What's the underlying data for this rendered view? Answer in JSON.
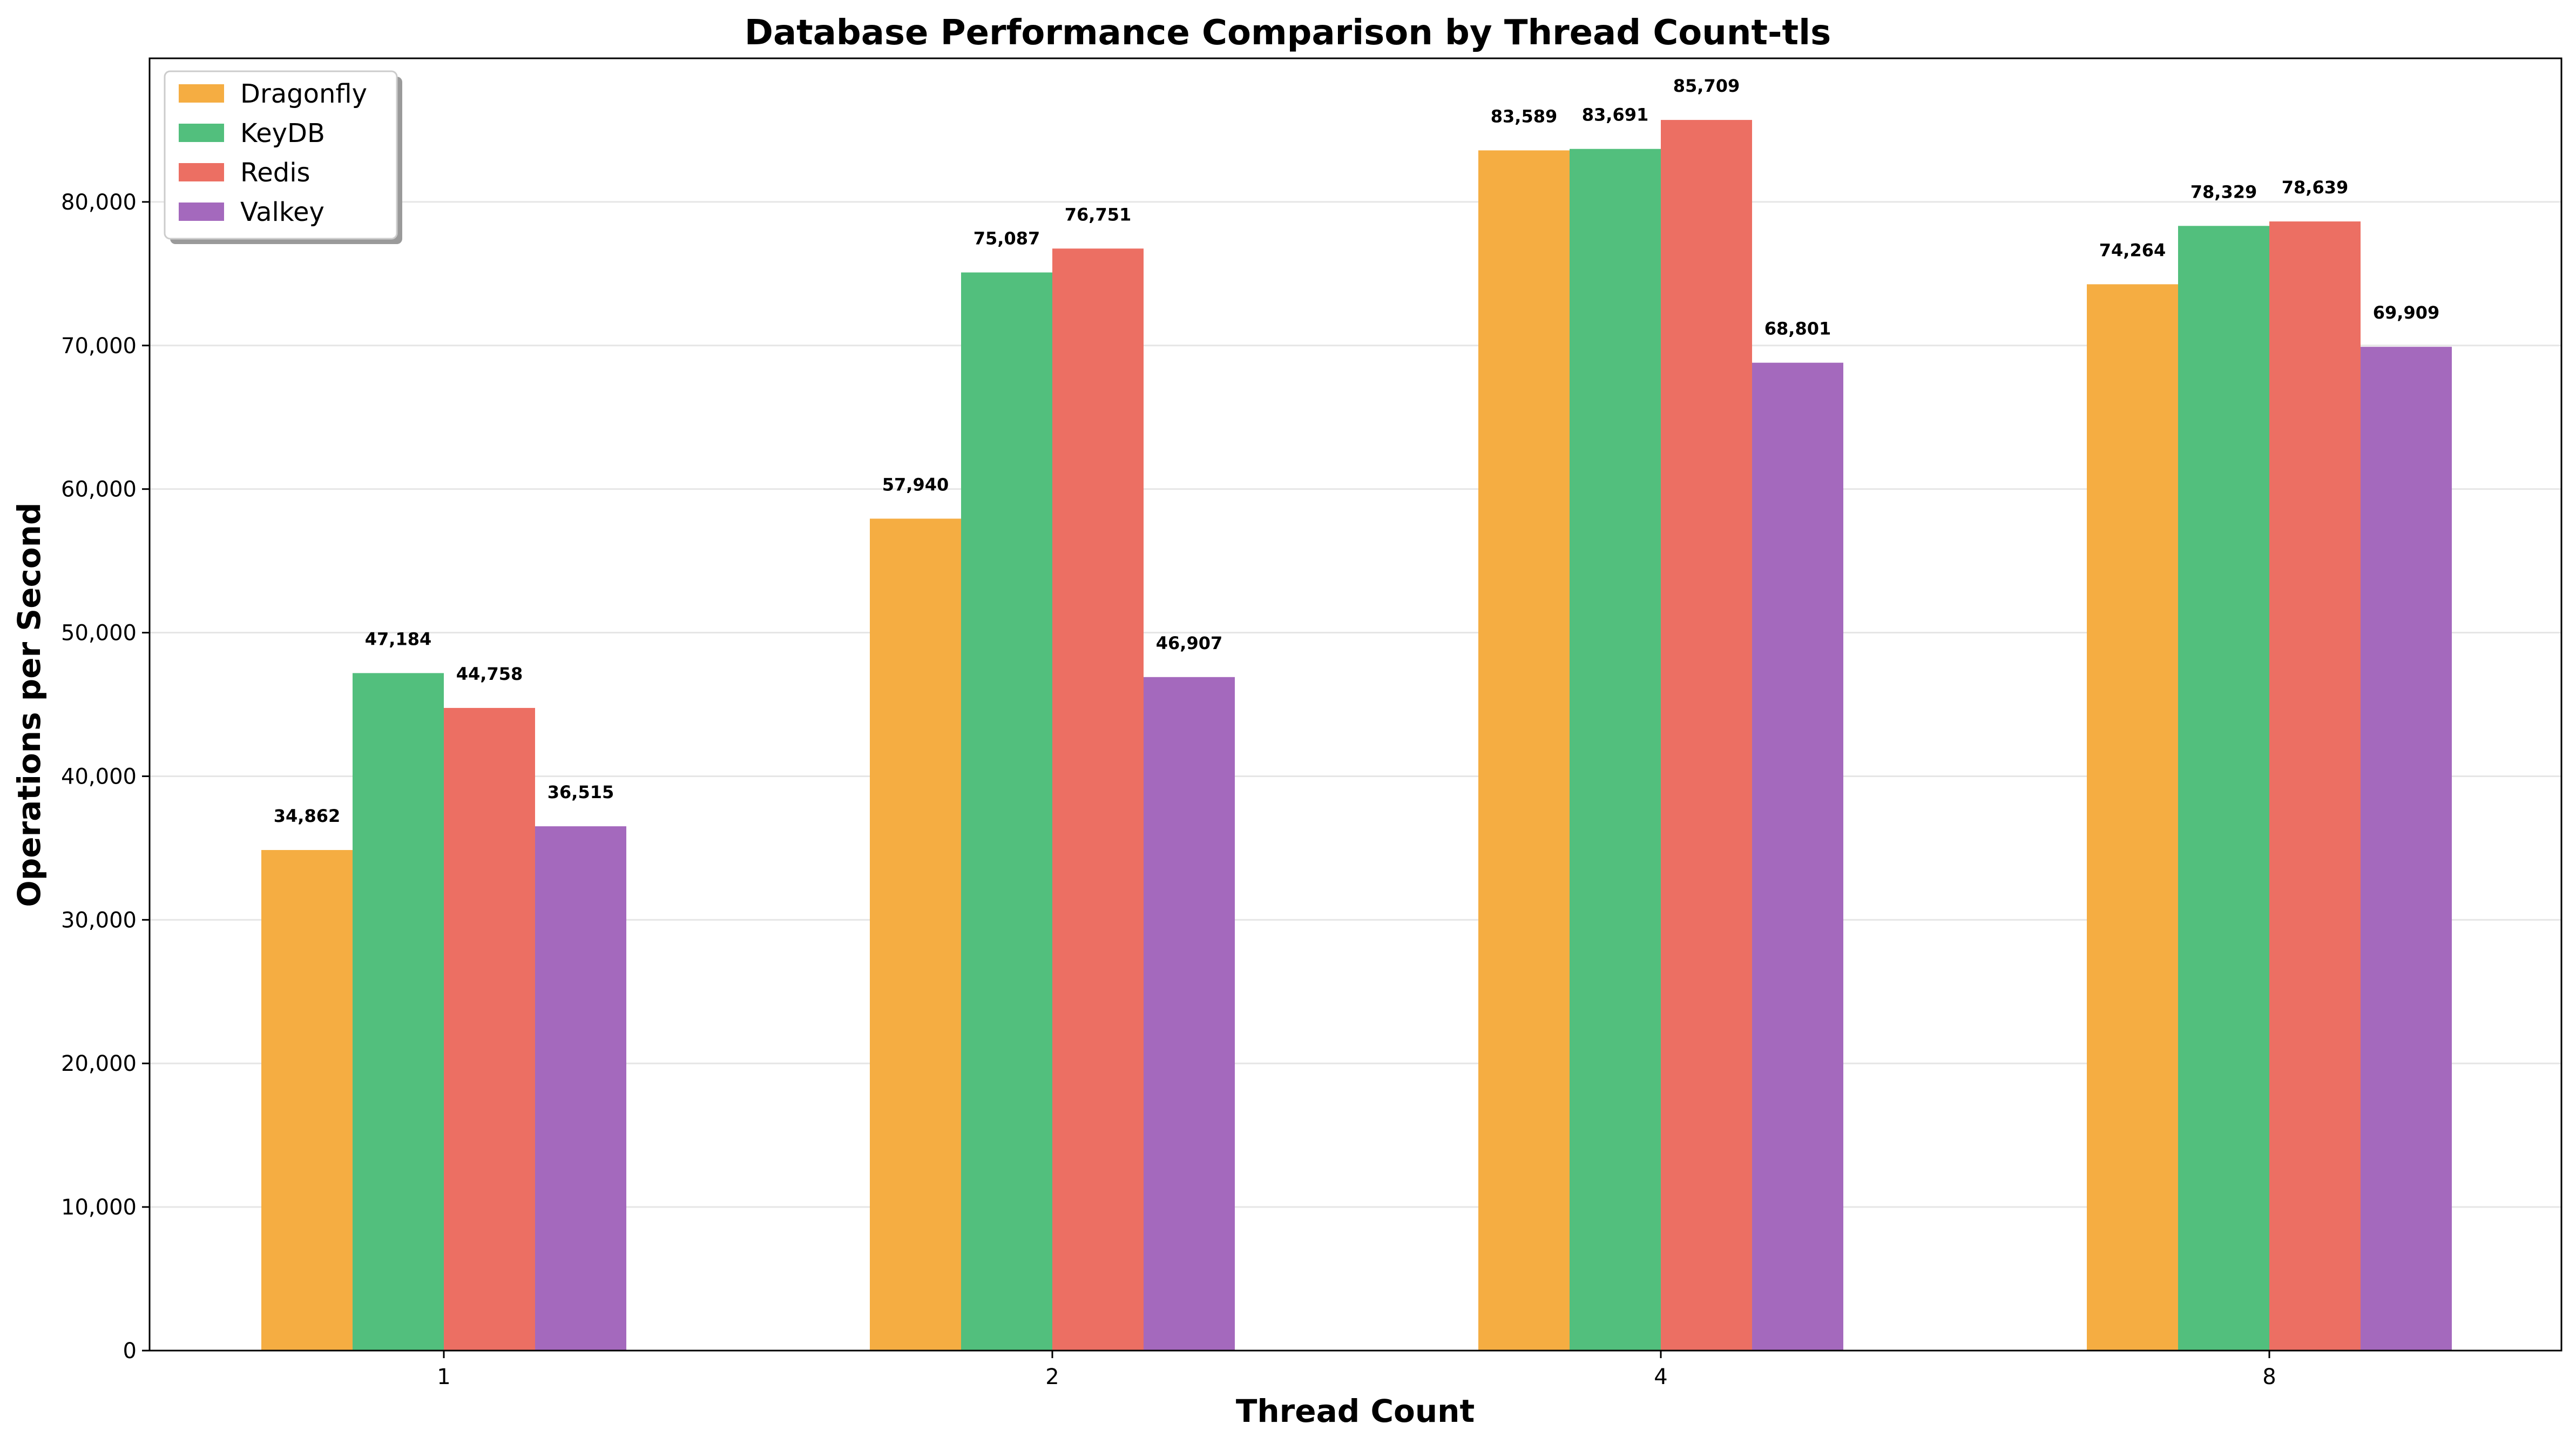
{
  "chart_data": {
    "type": "bar",
    "title": "Database Performance Comparison by Thread Count-tls",
    "xlabel": "Thread Count",
    "ylabel": "Operations per Second",
    "categories": [
      "1",
      "2",
      "4",
      "8"
    ],
    "ylim": [
      0,
      90000
    ],
    "yticks": [
      0,
      10000,
      20000,
      30000,
      40000,
      50000,
      60000,
      70000,
      80000
    ],
    "ytick_labels": [
      "0",
      "10,000",
      "20,000",
      "30,000",
      "40,000",
      "50,000",
      "60,000",
      "70,000",
      "80,000"
    ],
    "grid": "y",
    "legend_position": "top-left",
    "series": [
      {
        "name": "Dragonfly",
        "color": "#f5ad42",
        "values": [
          34862,
          57940,
          83589,
          74264
        ],
        "labels": [
          "34,862",
          "57,940",
          "83,589",
          "74,264"
        ]
      },
      {
        "name": "KeyDB",
        "color": "#52bf7d",
        "values": [
          47184,
          75087,
          83691,
          78329
        ],
        "labels": [
          "47,184",
          "75,087",
          "83,691",
          "78,329"
        ]
      },
      {
        "name": "Redis",
        "color": "#ec6f63",
        "values": [
          44758,
          76751,
          85709,
          78639
        ],
        "labels": [
          "44,758",
          "76,751",
          "85,709",
          "78,639"
        ]
      },
      {
        "name": "Valkey",
        "color": "#a469bd",
        "values": [
          36515,
          46907,
          68801,
          69909
        ],
        "labels": [
          "36,515",
          "46,907",
          "68,801",
          "69,909"
        ]
      }
    ]
  }
}
